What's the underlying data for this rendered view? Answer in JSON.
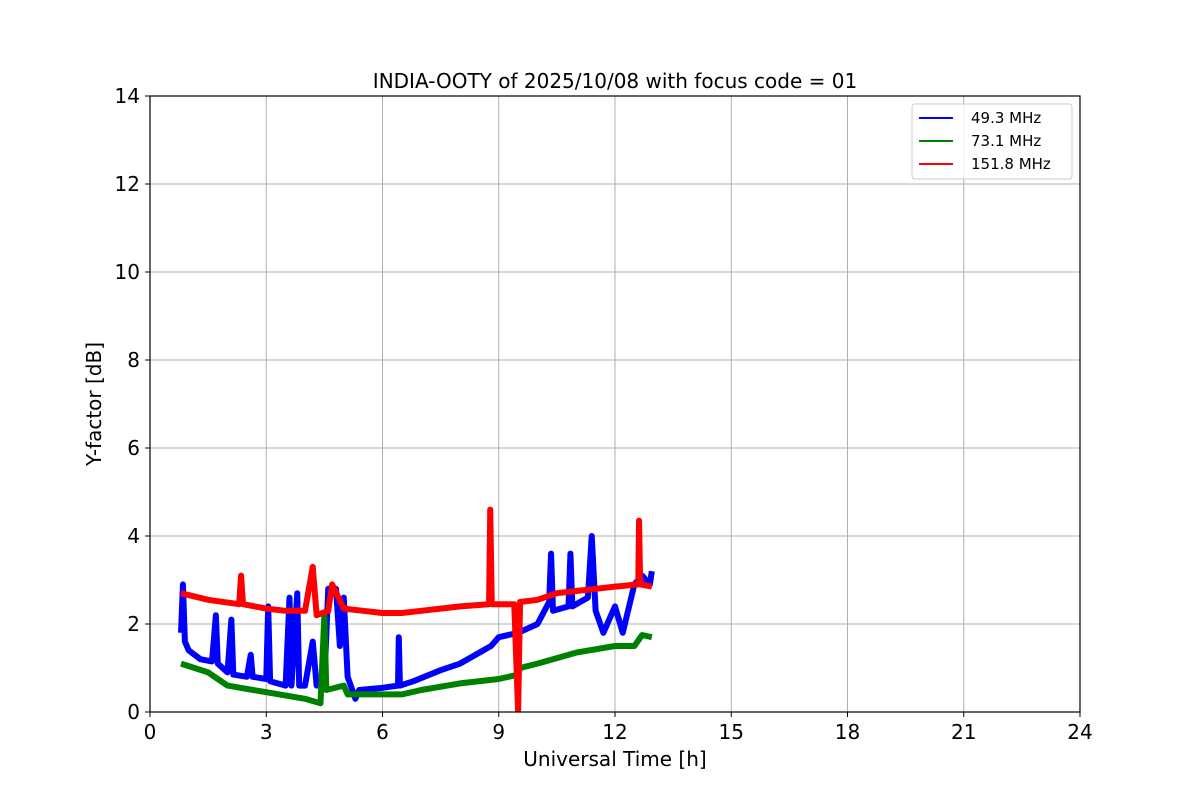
{
  "chart_data": {
    "type": "line",
    "title": "INDIA-OOTY of 2025/10/08 with focus code = 01",
    "xlabel": "Universal Time [h]",
    "ylabel": "Y-factor [dB]",
    "xlim": [
      0,
      24
    ],
    "ylim": [
      0,
      14
    ],
    "xticks": [
      "0",
      "3",
      "6",
      "9",
      "12",
      "15",
      "18",
      "21",
      "24"
    ],
    "yticks": [
      "0",
      "2",
      "4",
      "6",
      "8",
      "10",
      "12",
      "14"
    ],
    "grid": true,
    "legend_position": "top-right",
    "series": [
      {
        "name": " 49.3 MHz",
        "color": "#0000ff",
        "points": [
          [
            0.8,
            1.8
          ],
          [
            0.85,
            2.9
          ],
          [
            0.9,
            1.6
          ],
          [
            1.0,
            1.4
          ],
          [
            1.3,
            1.2
          ],
          [
            1.6,
            1.15
          ],
          [
            1.7,
            2.2
          ],
          [
            1.75,
            1.1
          ],
          [
            2.0,
            0.9
          ],
          [
            2.1,
            2.1
          ],
          [
            2.15,
            0.85
          ],
          [
            2.5,
            0.8
          ],
          [
            2.6,
            1.3
          ],
          [
            2.65,
            0.8
          ],
          [
            3.0,
            0.75
          ],
          [
            3.05,
            2.4
          ],
          [
            3.1,
            0.7
          ],
          [
            3.5,
            0.6
          ],
          [
            3.6,
            2.6
          ],
          [
            3.65,
            0.6
          ],
          [
            3.8,
            2.7
          ],
          [
            3.85,
            0.6
          ],
          [
            4.0,
            0.6
          ],
          [
            4.2,
            1.6
          ],
          [
            4.3,
            0.6
          ],
          [
            4.5,
            0.7
          ],
          [
            4.6,
            2.8
          ],
          [
            4.7,
            2.8
          ],
          [
            4.8,
            2.8
          ],
          [
            4.9,
            1.5
          ],
          [
            5.0,
            2.6
          ],
          [
            5.1,
            0.8
          ],
          [
            5.3,
            0.3
          ],
          [
            5.4,
            0.5
          ],
          [
            6.0,
            0.55
          ],
          [
            6.4,
            0.6
          ],
          [
            6.42,
            1.7
          ],
          [
            6.45,
            0.6
          ],
          [
            6.8,
            0.7
          ],
          [
            7.5,
            0.95
          ],
          [
            8.0,
            1.1
          ],
          [
            8.5,
            1.35
          ],
          [
            8.8,
            1.5
          ],
          [
            9.0,
            1.7
          ],
          [
            9.5,
            1.8
          ],
          [
            10.0,
            2.0
          ],
          [
            10.3,
            2.5
          ],
          [
            10.35,
            3.6
          ],
          [
            10.4,
            2.3
          ],
          [
            10.8,
            2.4
          ],
          [
            10.85,
            3.6
          ],
          [
            10.9,
            2.4
          ],
          [
            11.3,
            2.6
          ],
          [
            11.4,
            4.0
          ],
          [
            11.5,
            2.3
          ],
          [
            11.7,
            1.8
          ],
          [
            12.0,
            2.4
          ],
          [
            12.2,
            1.8
          ],
          [
            12.5,
            2.9
          ],
          [
            12.7,
            3.1
          ],
          [
            12.9,
            2.9
          ],
          [
            12.95,
            3.2
          ]
        ]
      },
      {
        "name": " 73.1 MHz",
        "color": "#008000",
        "points": [
          [
            0.8,
            1.1
          ],
          [
            1.5,
            0.9
          ],
          [
            2.0,
            0.6
          ],
          [
            3.0,
            0.45
          ],
          [
            4.0,
            0.3
          ],
          [
            4.4,
            0.2
          ],
          [
            4.5,
            2.2
          ],
          [
            4.55,
            0.5
          ],
          [
            5.0,
            0.6
          ],
          [
            5.1,
            0.4
          ],
          [
            6.0,
            0.4
          ],
          [
            6.5,
            0.4
          ],
          [
            7.0,
            0.5
          ],
          [
            8.0,
            0.65
          ],
          [
            9.0,
            0.75
          ],
          [
            9.5,
            0.85
          ],
          [
            9.55,
            1.0
          ],
          [
            10.0,
            1.1
          ],
          [
            11.0,
            1.35
          ],
          [
            12.0,
            1.5
          ],
          [
            12.5,
            1.5
          ],
          [
            12.7,
            1.75
          ],
          [
            12.95,
            1.7
          ]
        ]
      },
      {
        "name": "151.8 MHz",
        "color": "#ff0000",
        "points": [
          [
            0.8,
            2.7
          ],
          [
            1.5,
            2.55
          ],
          [
            2.3,
            2.45
          ],
          [
            2.35,
            3.1
          ],
          [
            2.4,
            2.45
          ],
          [
            3.0,
            2.35
          ],
          [
            3.5,
            2.3
          ],
          [
            4.0,
            2.3
          ],
          [
            4.2,
            3.3
          ],
          [
            4.3,
            2.2
          ],
          [
            4.6,
            2.3
          ],
          [
            4.7,
            2.9
          ],
          [
            5.0,
            2.35
          ],
          [
            5.5,
            2.3
          ],
          [
            6.0,
            2.25
          ],
          [
            6.5,
            2.25
          ],
          [
            7.0,
            2.3
          ],
          [
            7.5,
            2.35
          ],
          [
            8.0,
            2.4
          ],
          [
            8.75,
            2.45
          ],
          [
            8.78,
            4.6
          ],
          [
            8.82,
            2.45
          ],
          [
            9.4,
            2.45
          ],
          [
            9.5,
            0
          ],
          [
            9.55,
            2.5
          ],
          [
            10.0,
            2.55
          ],
          [
            10.5,
            2.7
          ],
          [
            11.0,
            2.75
          ],
          [
            11.5,
            2.8
          ],
          [
            12.0,
            2.85
          ],
          [
            12.6,
            2.9
          ],
          [
            12.62,
            4.35
          ],
          [
            12.65,
            2.9
          ],
          [
            12.95,
            2.85
          ]
        ]
      }
    ]
  }
}
